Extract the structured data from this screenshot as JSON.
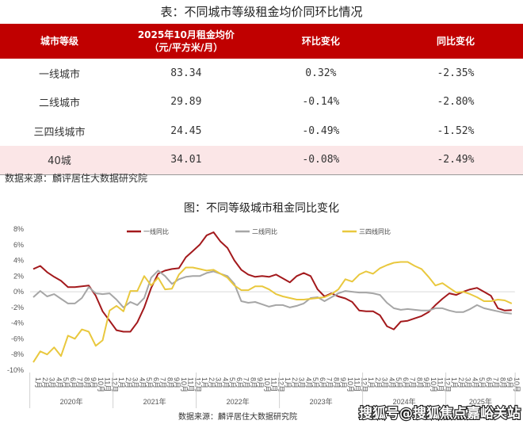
{
  "table": {
    "title": "表：不同城市等级租金均价同环比情况",
    "headers": [
      "城市等级",
      "2025年10月租金均价",
      "（元/平方米/月）",
      "环比变化",
      "同比变化"
    ],
    "rows": [
      {
        "city": "一线城市",
        "price": "83.34",
        "mom": "0.32%",
        "yoy": "-2.35%"
      },
      {
        "city": "二线城市",
        "price": "29.89",
        "mom": "-0.14%",
        "yoy": "-2.80%"
      },
      {
        "city": "三四线城市",
        "price": "24.45",
        "mom": "-0.49%",
        "yoy": "-1.52%"
      },
      {
        "city": "40城",
        "price": "34.01",
        "mom": "-0.08%",
        "yoy": "-2.49%"
      }
    ],
    "source": "数据来源：麟评居住大数据研究院",
    "header_color": "#c00000",
    "highlight_row_color": "#fbe6e7"
  },
  "chart_data": {
    "type": "line",
    "title": "图：不同等级城市租金同比变化",
    "source": "数据来源：麟评居住大数据研究院",
    "watermark": "搜狐号@搜狐焦点嘉峪关站",
    "ylim": [
      -10,
      8
    ],
    "yticks": [
      "8%",
      "6%",
      "4%",
      "2%",
      "0%",
      "-2%",
      "-4%",
      "-6%",
      "-8%",
      "-10%"
    ],
    "ytick_values": [
      8,
      6,
      4,
      2,
      0,
      -2,
      -4,
      -6,
      -8,
      -10
    ],
    "years": [
      "2020年",
      "2021年",
      "2022年",
      "2023年",
      "2024年",
      "2025年"
    ],
    "months": [
      "1月",
      "2月",
      "3月",
      "4月",
      "5月",
      "6月",
      "7月",
      "8月",
      "9月",
      "10月",
      "11月",
      "12月"
    ],
    "x_range": "2020年1月 - 2025年10月",
    "grid": false,
    "legend": "top",
    "series": [
      {
        "name": "一线同比",
        "color": "#a3191c",
        "values": [
          2.9,
          3.3,
          2.5,
          1.9,
          1.4,
          0.6,
          0.6,
          0.7,
          0.8,
          -0.5,
          -2.5,
          -3.7,
          -4.9,
          -5.1,
          -5.1,
          -3.9,
          -2.0,
          0.5,
          2.3,
          2.7,
          2.9,
          3.0,
          4.4,
          5.2,
          6.0,
          7.2,
          7.6,
          6.4,
          5.6,
          4.0,
          2.8,
          2.2,
          1.9,
          2.0,
          1.9,
          2.2,
          1.7,
          1.2,
          2.0,
          2.4,
          2.0,
          0.3,
          -0.6,
          -0.2,
          -0.6,
          -0.85,
          -1.3,
          -2.4,
          -2.5,
          -2.5,
          -3.0,
          -4.4,
          -4.8,
          -3.8,
          -3.7,
          -3.4,
          -3.1,
          -2.6,
          -1.7,
          -0.9,
          -0.2,
          -0.4,
          0.0,
          0.3,
          0.5,
          0.0,
          -0.5,
          -2.1,
          -2.4,
          -2.35
        ]
      },
      {
        "name": "二线同比",
        "color": "#a6a6a6",
        "values": [
          -0.7,
          0.1,
          -0.6,
          -0.3,
          -0.9,
          -1.5,
          -1.5,
          -0.8,
          0.6,
          -0.2,
          -0.3,
          -0.2,
          -1.0,
          -2.0,
          -1.3,
          -1.7,
          -0.8,
          1.8,
          2.7,
          2.0,
          1.0,
          1.6,
          1.9,
          2.0,
          2.0,
          2.4,
          2.6,
          2.3,
          2.0,
          1.0,
          -1.2,
          -1.4,
          -1.3,
          -1.6,
          -1.9,
          -1.7,
          -1.7,
          -2.0,
          -1.8,
          -1.5,
          -0.8,
          -0.7,
          -1.2,
          -0.7,
          -0.2,
          0.1,
          0.0,
          -0.1,
          -0.1,
          -0.2,
          -0.4,
          -1.4,
          -2.1,
          -2.3,
          -2.2,
          -2.3,
          -2.4,
          -2.4,
          -2.1,
          -2.1,
          -2.4,
          -2.6,
          -2.6,
          -2.2,
          -1.7,
          -2.1,
          -2.3,
          -2.5,
          -2.7,
          -2.8
        ]
      },
      {
        "name": "三四线同比",
        "color": "#e9c83e",
        "values": [
          -9.0,
          -7.6,
          -8.0,
          -7.1,
          -8.2,
          -5.6,
          -6.0,
          -4.8,
          -5.1,
          -6.9,
          -6.2,
          -2.4,
          -1.8,
          -2.5,
          0.1,
          0.1,
          2.0,
          0.8,
          1.8,
          0.3,
          0.4,
          2.2,
          3.1,
          3.1,
          2.9,
          2.7,
          2.8,
          2.3,
          1.8,
          0.8,
          0.2,
          0.2,
          0.7,
          0.7,
          0.3,
          -0.3,
          -0.6,
          -0.8,
          -1.0,
          -1.0,
          -0.9,
          -0.8,
          -0.7,
          -0.3,
          0.3,
          1.6,
          1.3,
          2.2,
          2.6,
          2.3,
          3.0,
          3.4,
          3.7,
          3.8,
          3.8,
          3.3,
          2.9,
          1.9,
          0.8,
          1.1,
          0.5,
          -0.1,
          0.0,
          -0.3,
          -0.7,
          -1.2,
          -1.2,
          -1.0,
          -1.1,
          -1.5
        ]
      }
    ]
  }
}
